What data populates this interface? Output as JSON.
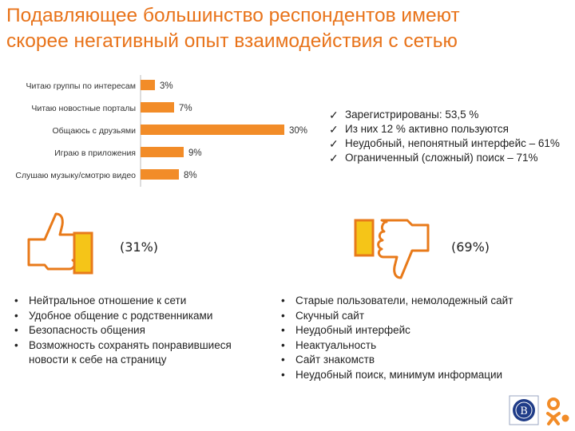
{
  "title": {
    "line1": "Подавляющее большинство респондентов имеют",
    "line2": "скорее негативный опыт взаимодействия с сетью"
  },
  "chart_data": {
    "type": "bar",
    "orientation": "horizontal",
    "categories": [
      "Читаю группы по интересам",
      "Читаю новостные порталы",
      "Общаюсь с друзьями",
      "Играю в приложения",
      "Слушаю музыку/смотрю видео"
    ],
    "values": [
      3,
      7,
      30,
      9,
      8
    ],
    "value_labels": [
      "3%",
      "7%",
      "30%",
      "9%",
      "8%"
    ],
    "xlim": [
      0,
      30
    ],
    "bar_color": "#F28C28",
    "grid": false
  },
  "stats": [
    "Зарегистрированы:  53,5 %",
    "Из них 12 % активно пользуются",
    "Неудобный, непонятный интерфейс – 61%",
    "Ограниченный (сложный) поиск – 71%"
  ],
  "positive": {
    "percent": "(31%)",
    "icon": "thumbs-up-icon",
    "items": [
      "Нейтральное отношение к сети",
      "Удобное общение с родственниками",
      "Безопасность общения",
      "Возможность сохранять понравившиеся новости к себе на страницу"
    ]
  },
  "negative": {
    "percent": "(69%)",
    "icon": "thumbs-down-icon",
    "items": [
      "Старые пользователи, немолодежный сайт",
      "Скучный сайт",
      "Неудобный интерфейс",
      "Неактуальность",
      "Сайт знакомств",
      "Неудобный поиск, минимум информации"
    ]
  },
  "colors": {
    "accent": "#E8731A",
    "icon_fill": "#F5C518",
    "icon_outline": "#E87A1A"
  }
}
